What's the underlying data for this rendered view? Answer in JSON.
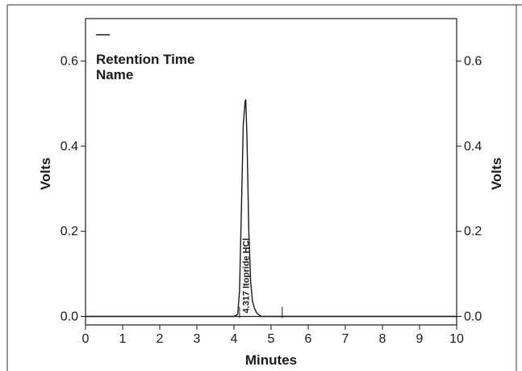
{
  "chart_data": {
    "type": "line",
    "xlabel": "Minutes",
    "ylabel_left": "Volts",
    "ylabel_right": "Volts",
    "xlim": [
      0,
      10
    ],
    "ylim": [
      -0.02,
      0.7
    ],
    "xticks": [
      0,
      1,
      2,
      3,
      4,
      5,
      6,
      7,
      8,
      9,
      10
    ],
    "yticks": [
      0.0,
      0.2,
      0.4,
      0.6
    ],
    "ytick_labels": [
      "0.0",
      "0.2",
      "0.4",
      "0.6"
    ],
    "grid": false,
    "legend": {
      "placement": "top-left",
      "line1": "Retention Time",
      "line2": "Name"
    },
    "series": [
      {
        "x": [
          0,
          4.0,
          4.1,
          4.15,
          4.2,
          4.25,
          4.3,
          4.317,
          4.35,
          4.4,
          4.45,
          4.5,
          4.55,
          4.6,
          4.65,
          4.7,
          4.75,
          10
        ],
        "values": [
          0,
          0,
          0.005,
          0.06,
          0.25,
          0.45,
          0.505,
          0.51,
          0.42,
          0.2,
          0.08,
          0.035,
          0.02,
          0.01,
          0.005,
          0.002,
          0,
          0
        ]
      }
    ],
    "peaks": [
      {
        "retention_time": "4.317",
        "name": "Itopride HCl",
        "x": 4.317
      }
    ],
    "integration_markers": [
      {
        "x": 4.15
      },
      {
        "x": 5.3
      }
    ]
  }
}
